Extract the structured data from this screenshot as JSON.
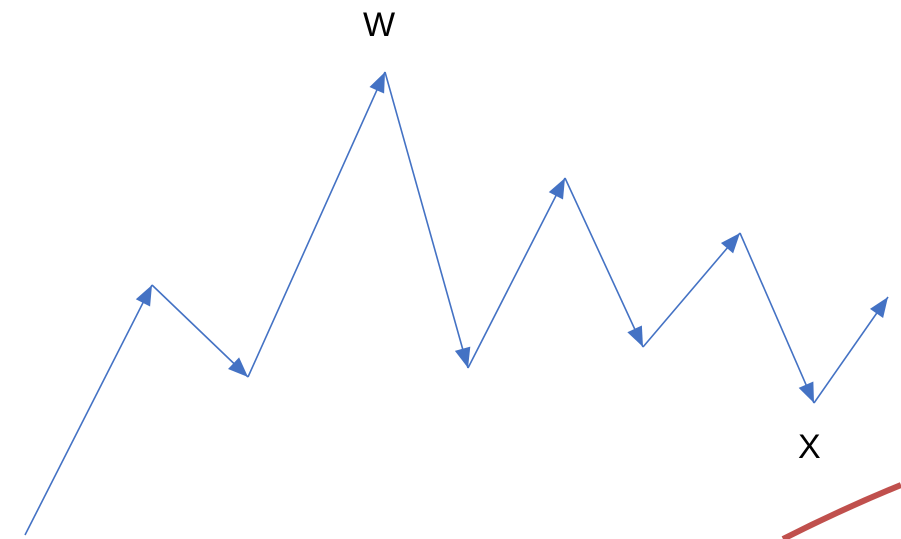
{
  "labels": {
    "peak": "W",
    "trough": "X"
  },
  "colors": {
    "wave_line": "#4472c4",
    "arrowhead": "#4472c4",
    "curve": "#c0504d",
    "label_text": "#000000"
  },
  "icons": {
    "segment_end": "arrowhead-icon"
  }
}
